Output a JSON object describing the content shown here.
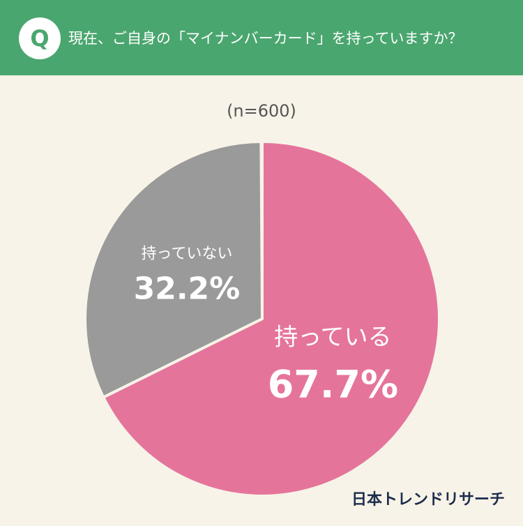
{
  "badge": "Q",
  "source": "日本トレンドリサーチ",
  "chart_data": {
    "type": "pie",
    "title": "現在、ご自身の「マイナンバーカード」を持っていますか？",
    "subtitle": "(n=600)",
    "categories": [
      "持っている",
      "持っていない"
    ],
    "values": [
      67.7,
      32.2
    ],
    "value_labels": [
      "67.7%",
      "32.2%"
    ],
    "colors": [
      "#e5749b",
      "#999a99"
    ]
  }
}
